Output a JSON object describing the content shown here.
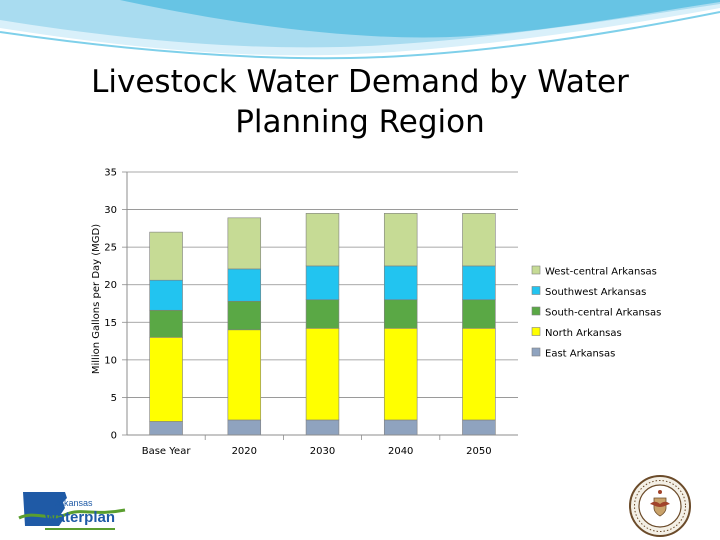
{
  "slide": {
    "title": "Livestock Water Demand by Water Planning Region"
  },
  "chart_data": {
    "type": "bar",
    "stacked": true,
    "title": "",
    "xlabel": "",
    "ylabel": "Million Gallons per Day (MGD)",
    "ylim": [
      0,
      35
    ],
    "yticks": [
      0,
      5,
      10,
      15,
      20,
      25,
      30,
      35
    ],
    "categories": [
      "Base Year",
      "2020",
      "2030",
      "2040",
      "2050"
    ],
    "series": [
      {
        "name": "East Arkansas",
        "color": "#8fa3bf",
        "values": [
          1.8,
          2.0,
          2.0,
          2.0,
          2.0
        ]
      },
      {
        "name": "North Arkansas",
        "color": "#ffff00",
        "values": [
          11.2,
          12.0,
          12.2,
          12.2,
          12.2
        ]
      },
      {
        "name": "South-central Arkansas",
        "color": "#5aa845",
        "values": [
          3.6,
          3.8,
          3.8,
          3.8,
          3.8
        ]
      },
      {
        "name": "Southwest Arkansas",
        "color": "#22c4f0",
        "values": [
          4.0,
          4.3,
          4.5,
          4.5,
          4.5
        ]
      },
      {
        "name": "West-central Arkansas",
        "color": "#c6db95",
        "values": [
          6.4,
          6.8,
          7.0,
          7.0,
          7.0
        ]
      }
    ],
    "legend_position": "right",
    "grid": "horizontal"
  },
  "logo": {
    "line1": "Arkansas",
    "line2": "waterplan"
  },
  "colors": {
    "wave_light": "#bfe6f5",
    "wave_dark": "#4fb7dc",
    "logo_blue": "#1f5aa6",
    "logo_green": "#5a9e2f"
  }
}
